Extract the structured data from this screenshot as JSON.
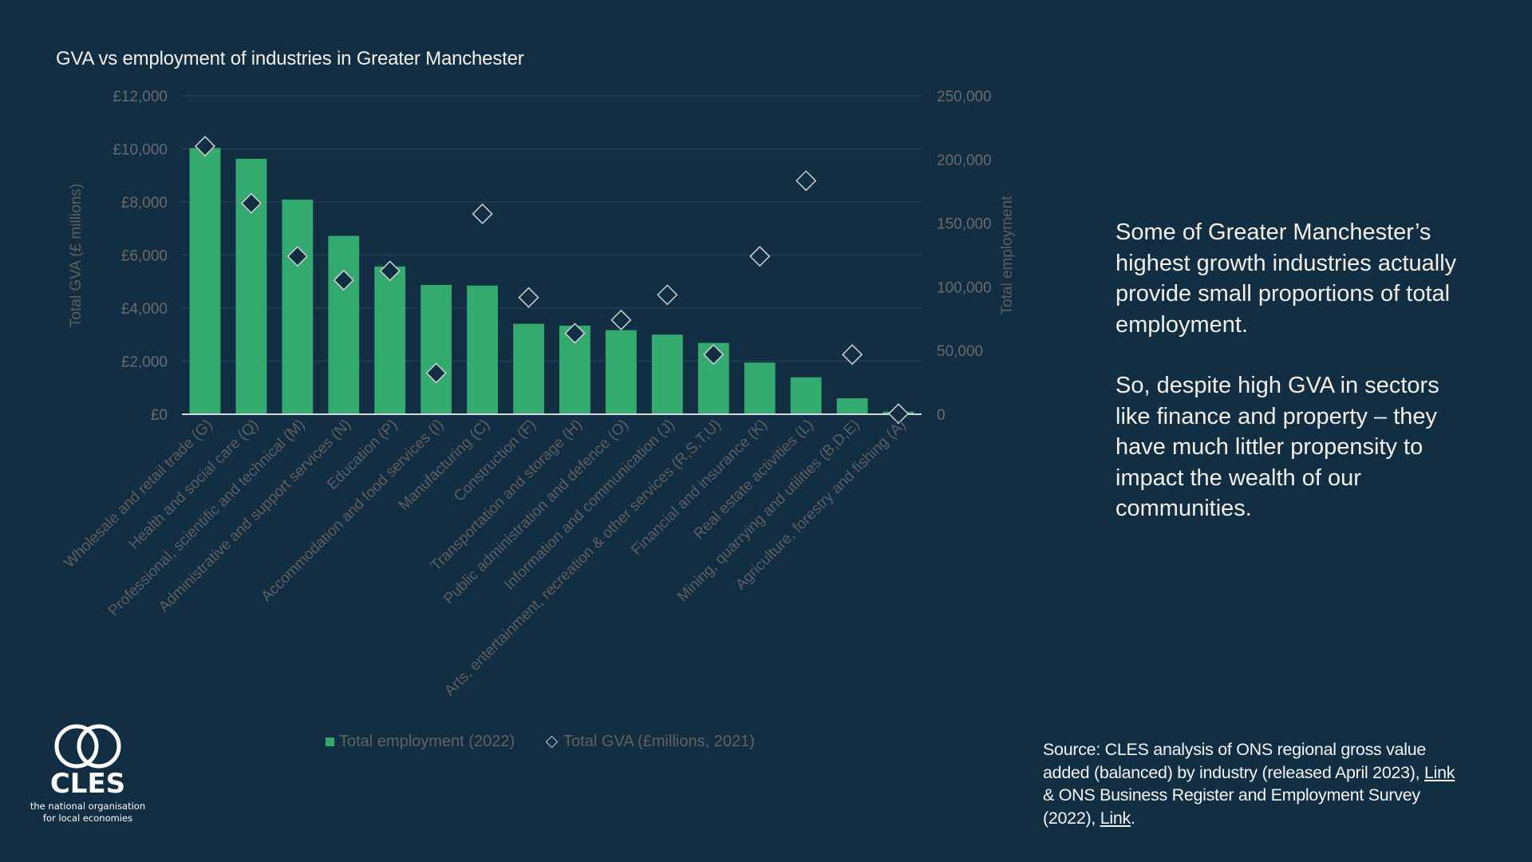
{
  "chart_data": {
    "type": "bar",
    "title": "GVA vs employment of industries in Greater Manchester",
    "xlabel": "",
    "ylabel": "Total GVA (£ millions)",
    "y2label": "Total employment",
    "grid": true,
    "legend_position": "bottom",
    "categories": [
      "Wholesale and retail trade (G)",
      "Health and social care (Q)",
      "Professional, scientific and technical  (M)",
      "Administrative and support services (N)",
      "Education (P)",
      "Accommodation and food services (I)",
      "Manufacturing (C)",
      "Construction (F)",
      "Transportation and storage (H)",
      "Public administration and defence (O)",
      "Information and communication (J)",
      "Arts, entertainment, recreation & other services (R,S,T,U)",
      "Financial and insurance (K)",
      "Real estate activities (L)",
      "Mining, quarrying and utilities (B,D,E)",
      "Agriculture, forestry and fishing (A)"
    ],
    "series": [
      {
        "name": "Total employment (2022)",
        "type": "bar",
        "axis": "right",
        "color": "#33ab6f",
        "values": [
          209000,
          200500,
          168500,
          140000,
          116000,
          101500,
          101000,
          71000,
          69500,
          66000,
          62500,
          56000,
          40500,
          29000,
          12500,
          2000
        ]
      },
      {
        "name": "Total GVA (£millions, 2021)",
        "type": "scatter",
        "marker": "diamond",
        "axis": "left",
        "color": "#d0d0d0",
        "values": [
          10100,
          7950,
          5950,
          5050,
          5400,
          1550,
          7550,
          4400,
          3050,
          3550,
          4500,
          2250,
          5950,
          8800,
          2250,
          20
        ]
      }
    ],
    "ylim": [
      0,
      12000
    ],
    "y2lim": [
      0,
      250000
    ],
    "yticks": [
      "£0",
      "£2,000",
      "£4,000",
      "£6,000",
      "£8,000",
      "£10,000",
      "£12,000"
    ],
    "y2ticks": [
      "0",
      "50,000",
      "100,000",
      "150,000",
      "200,000",
      "250,000"
    ]
  },
  "legend": {
    "employment": "Total employment (2022)",
    "gva": "Total GVA (£millions, 2021)"
  },
  "commentary": {
    "paragraph1": "Some of Greater Manchester’s highest growth industries actually provide small proportions of total employment.",
    "paragraph2": "So, despite high GVA in sectors like finance and property – they have much littler propensity to impact the wealth of our communities."
  },
  "source": {
    "prefix": "Source: CLES analysis of ONS regional gross value added (balanced) by industry (released April 2023), ",
    "link1": "Link",
    "middle": " & ONS Business Register and Employment Survey (2022), ",
    "link2": "Link",
    "suffix": "."
  },
  "logo": {
    "wordmark": "CLES",
    "tagline_line1": "the national organisation",
    "tagline_line2": "for local economies"
  },
  "colors": {
    "background": "#122e43",
    "bar": "#33ab6f",
    "gridline": "#1f3d60",
    "diamond_stroke": "#d0d0d0",
    "axis_text": "#6a6a6a"
  }
}
